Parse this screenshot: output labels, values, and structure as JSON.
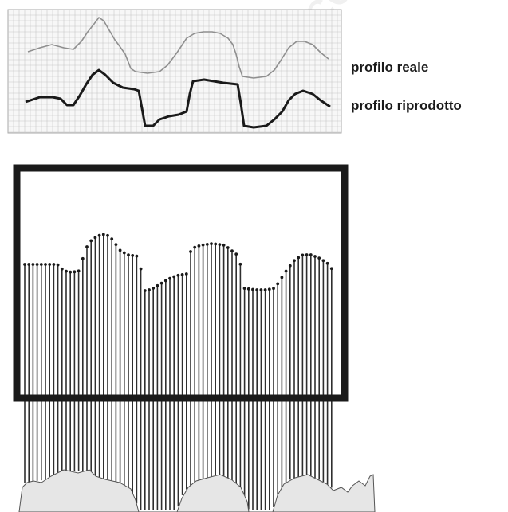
{
  "legend": {
    "real_profile_label": "profilo reale",
    "reproduced_profile_label": "profilo riprodotto"
  },
  "watermark": {
    "text": "Non co"
  },
  "colors": {
    "ink": "#1a1a1a",
    "grid": "#b8b8b8",
    "real_profile": "#8a8a8a",
    "reproduced_profile": "#1a1a1a",
    "frame": "#1a1a1a",
    "pins": "#3a3a3a",
    "watermark": "#d6d6d6"
  }
}
